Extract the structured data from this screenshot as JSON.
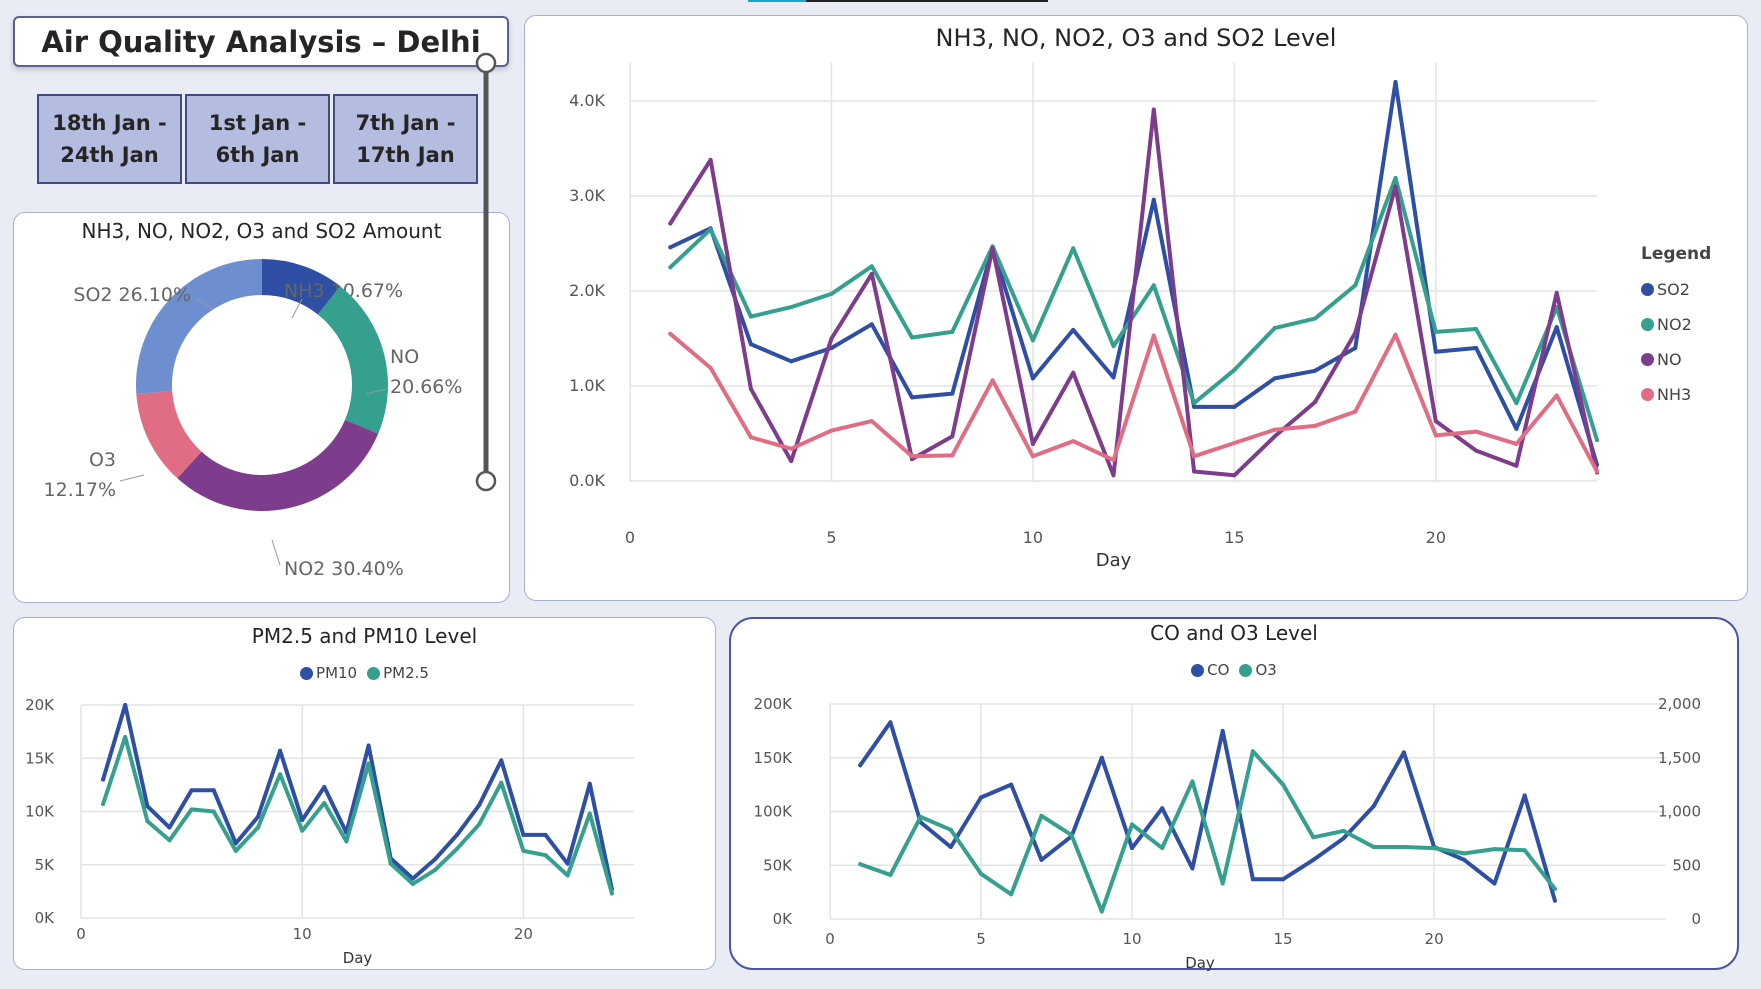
{
  "header": {
    "title": "Air Quality Analysis – Delhi"
  },
  "slicers": [
    {
      "label": "18th Jan -\n24th Jan"
    },
    {
      "label": "1st Jan -\n6th Jan"
    },
    {
      "label": "7th Jan -\n17th Jan"
    }
  ],
  "donut": {
    "title": "NH3, NO, NO2, O3 and SO2 Amount"
  },
  "gases": {
    "title": "NH3, NO, NO2, O3 and SO2 Level",
    "legend_title": "Legend"
  },
  "pm": {
    "title": "PM2.5 and PM10 Level"
  },
  "co": {
    "title": "CO and O3 Level"
  },
  "colors": {
    "so2": "#2e4fa3",
    "no2": "#35a08d",
    "no": "#7d3c8c",
    "nh3": "#e06d83",
    "o3_slice": "#6e8fcf"
  },
  "chart_data": [
    {
      "type": "pie",
      "style": "donut",
      "title": "NH3, NO, NO2, O3 and SO2 Amount",
      "slices": [
        {
          "name": "NH3",
          "value": 10.67,
          "label": "NH3 10.67%",
          "color": "#2e4fa3"
        },
        {
          "name": "NO",
          "value": 20.66,
          "label": "NO\n20.66%",
          "color": "#35a08d"
        },
        {
          "name": "NO2",
          "value": 30.4,
          "label": "NO2 30.40%",
          "color": "#7d3c8c"
        },
        {
          "name": "O3",
          "value": 12.17,
          "label": "O3\n12.17%",
          "color": "#e06d83"
        },
        {
          "name": "SO2",
          "value": 26.1,
          "label": "SO2 26.10%",
          "color": "#6e8fcf"
        }
      ]
    },
    {
      "type": "line",
      "title": "NH3, NO, NO2, O3 and SO2 Level",
      "xlabel": "Day",
      "x": [
        1,
        2,
        3,
        4,
        5,
        6,
        7,
        8,
        9,
        10,
        11,
        12,
        13,
        14,
        15,
        16,
        17,
        18,
        19,
        20,
        21,
        22,
        23,
        24
      ],
      "xlim": [
        0,
        24
      ],
      "xticks": [
        0,
        5,
        10,
        15,
        20
      ],
      "ylim": [
        0,
        4400
      ],
      "yticks": [
        0,
        1000,
        2000,
        3000,
        4000
      ],
      "ytick_labels": [
        "0.0K",
        "1.0K",
        "2.0K",
        "3.0K",
        "4.0K"
      ],
      "legend_title": "Legend",
      "series": [
        {
          "name": "SO2",
          "color": "#2e4fa3",
          "values": [
            2460,
            2660,
            1440,
            1260,
            1400,
            1650,
            880,
            920,
            2460,
            1080,
            1590,
            1090,
            2960,
            780,
            780,
            1080,
            1160,
            1400,
            4200,
            1360,
            1400,
            550,
            1620,
            170
          ]
        },
        {
          "name": "NO2",
          "color": "#35a08d",
          "values": [
            2250,
            2650,
            1730,
            1830,
            1970,
            2260,
            1510,
            1570,
            2470,
            1480,
            2450,
            1420,
            2060,
            820,
            1170,
            1610,
            1710,
            2060,
            3190,
            1570,
            1600,
            820,
            1830,
            430
          ]
        },
        {
          "name": "NO",
          "color": "#7d3c8c",
          "values": [
            2710,
            3380,
            970,
            210,
            1500,
            2180,
            230,
            470,
            2450,
            390,
            1140,
            60,
            3910,
            100,
            60,
            470,
            830,
            1560,
            3100,
            630,
            320,
            160,
            1980,
            90
          ]
        },
        {
          "name": "NH3",
          "color": "#e06d83",
          "values": [
            1550,
            1190,
            460,
            340,
            530,
            630,
            260,
            270,
            1060,
            260,
            420,
            220,
            1530,
            260,
            400,
            540,
            580,
            730,
            1540,
            480,
            520,
            390,
            900,
            100
          ]
        }
      ]
    },
    {
      "type": "line",
      "title": "PM2.5 and PM10 Level",
      "xlabel": "Day",
      "x": [
        1,
        2,
        3,
        4,
        5,
        6,
        7,
        8,
        9,
        10,
        11,
        12,
        13,
        14,
        15,
        16,
        17,
        18,
        19,
        20,
        21,
        22,
        23,
        24
      ],
      "xlim": [
        0,
        25
      ],
      "xticks": [
        0,
        10,
        20
      ],
      "ylim": [
        0,
        20000
      ],
      "yticks": [
        0,
        5000,
        10000,
        15000,
        20000
      ],
      "ytick_labels": [
        "0K",
        "5K",
        "10K",
        "15K",
        "20K"
      ],
      "series": [
        {
          "name": "PM10",
          "color": "#2e4fa3",
          "values": [
            13000,
            20000,
            10500,
            8500,
            12000,
            12000,
            7000,
            9500,
            15700,
            9200,
            12300,
            8000,
            16200,
            5600,
            3700,
            5500,
            7800,
            10600,
            14800,
            7800,
            7800,
            5100,
            12600,
            2700
          ]
        },
        {
          "name": "PM2.5",
          "color": "#35a08d",
          "values": [
            10700,
            17000,
            9100,
            7300,
            10200,
            10000,
            6300,
            8500,
            13500,
            8200,
            10800,
            7200,
            14500,
            5100,
            3200,
            4500,
            6500,
            8800,
            12700,
            6300,
            5900,
            4000,
            9800,
            2300
          ]
        }
      ]
    },
    {
      "type": "line",
      "title": "CO and O3 Level",
      "xlabel": "Day",
      "x": [
        1,
        2,
        3,
        4,
        5,
        6,
        7,
        8,
        9,
        10,
        11,
        12,
        13,
        14,
        15,
        16,
        17,
        18,
        19,
        20,
        21,
        22,
        23,
        24
      ],
      "xlim": [
        0,
        24.5
      ],
      "xticks": [
        0,
        5,
        10,
        15,
        20
      ],
      "ylim": [
        0,
        200000
      ],
      "yticks": [
        0,
        50000,
        100000,
        150000,
        200000
      ],
      "ytick_labels": [
        "0K",
        "50K",
        "100K",
        "150K",
        "200K"
      ],
      "y2lim": [
        0,
        2000
      ],
      "y2ticks": [
        0,
        500,
        1000,
        1500,
        2000
      ],
      "y2tick_labels": [
        "0",
        "500",
        "1,000",
        "1,500",
        "2,000"
      ],
      "series": [
        {
          "name": "CO",
          "axis": "left",
          "color": "#2e4fa3",
          "values": [
            143000,
            183000,
            90000,
            67000,
            113000,
            125000,
            55000,
            77000,
            150000,
            66000,
            103000,
            47000,
            175000,
            37000,
            37000,
            55000,
            75000,
            105000,
            155000,
            67000,
            55000,
            33000,
            115000,
            17000
          ]
        },
        {
          "name": "O3",
          "axis": "right",
          "color": "#35a08d",
          "values": [
            510,
            410,
            950,
            830,
            420,
            230,
            960,
            780,
            70,
            880,
            660,
            1280,
            330,
            1560,
            1250,
            760,
            820,
            670,
            670,
            660,
            610,
            650,
            640,
            280
          ]
        }
      ]
    }
  ]
}
